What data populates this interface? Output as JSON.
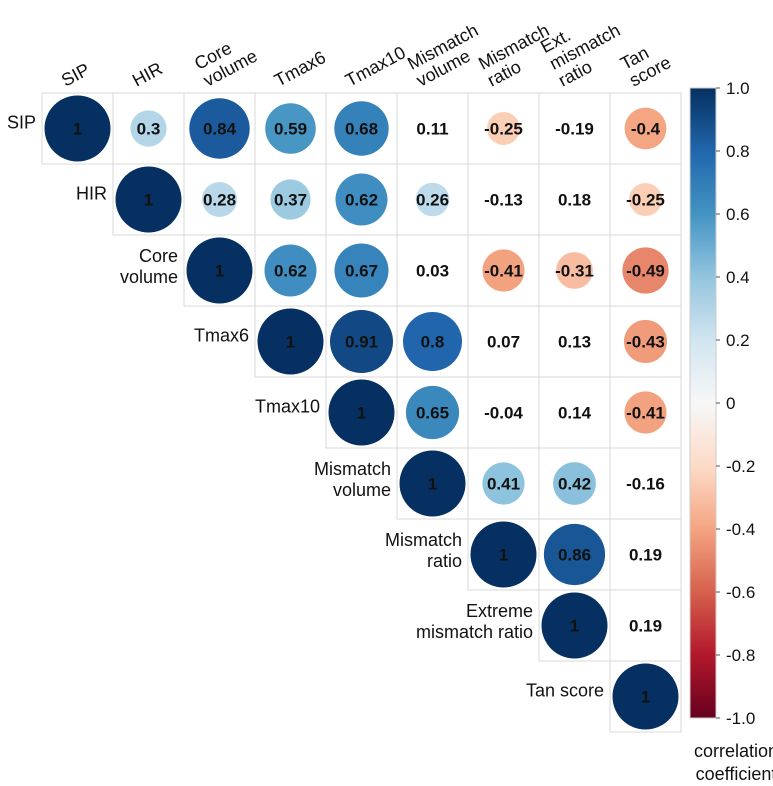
{
  "chart_data": {
    "type": "heatmap",
    "subtype": "correlation-circles-upper-triangle",
    "variables": [
      "SIP",
      "HIR",
      "Core volume",
      "Tmax6",
      "Tmax10",
      "Mismatch volume",
      "Mismatch ratio",
      "Ext. mismatch ratio",
      "Tan score"
    ],
    "column_labels": [
      [
        "SIP"
      ],
      [
        "HIR"
      ],
      [
        "Core",
        "volume"
      ],
      [
        "Tmax6"
      ],
      [
        "Tmax10"
      ],
      [
        "Mismatch",
        "volume"
      ],
      [
        "Mismatch",
        "ratio"
      ],
      [
        "Ext.",
        "mismatch",
        "ratio"
      ],
      [
        "Tan",
        "score"
      ]
    ],
    "row_labels": [
      [
        "SIP"
      ],
      [
        "HIR"
      ],
      [
        "Core",
        "volume"
      ],
      [
        "Tmax6"
      ],
      [
        "Tmax10"
      ],
      [
        "Mismatch",
        "volume"
      ],
      [
        "Mismatch",
        "ratio"
      ],
      [
        "Extreme",
        "mismatch ratio"
      ],
      [
        "Tan score"
      ]
    ],
    "matrix": [
      [
        1,
        0.3,
        0.84,
        0.59,
        0.68,
        0.11,
        -0.25,
        -0.19,
        -0.4
      ],
      [
        null,
        1,
        0.28,
        0.37,
        0.62,
        0.26,
        -0.13,
        0.18,
        -0.25
      ],
      [
        null,
        null,
        1,
        0.62,
        0.67,
        0.03,
        -0.41,
        -0.31,
        -0.49
      ],
      [
        null,
        null,
        null,
        1,
        0.91,
        0.8,
        0.07,
        0.13,
        -0.43
      ],
      [
        null,
        null,
        null,
        null,
        1,
        0.65,
        -0.04,
        0.14,
        -0.41
      ],
      [
        null,
        null,
        null,
        null,
        null,
        1,
        0.41,
        0.42,
        -0.16
      ],
      [
        null,
        null,
        null,
        null,
        null,
        null,
        1,
        0.86,
        0.19
      ],
      [
        null,
        null,
        null,
        null,
        null,
        null,
        null,
        1,
        0.19
      ],
      [
        null,
        null,
        null,
        null,
        null,
        null,
        null,
        null,
        1
      ]
    ],
    "significance_threshold": 0.2,
    "colorbar": {
      "title": [
        "correlation",
        "coefficient"
      ],
      "range": [
        -1,
        1
      ],
      "ticks": [
        "1.0",
        "0.8",
        "0.6",
        "0.4",
        "0.2",
        "0",
        "-0.2",
        "-0.4",
        "-0.6",
        "-0.8",
        "-1.0"
      ],
      "colors": [
        "#67001f",
        "#b2182b",
        "#d6604d",
        "#f4a582",
        "#fddbc7",
        "#f7f7f7",
        "#d1e5f0",
        "#92c5de",
        "#4393c3",
        "#2166ac",
        "#053061"
      ]
    },
    "grid": true,
    "legend_position": "right"
  }
}
